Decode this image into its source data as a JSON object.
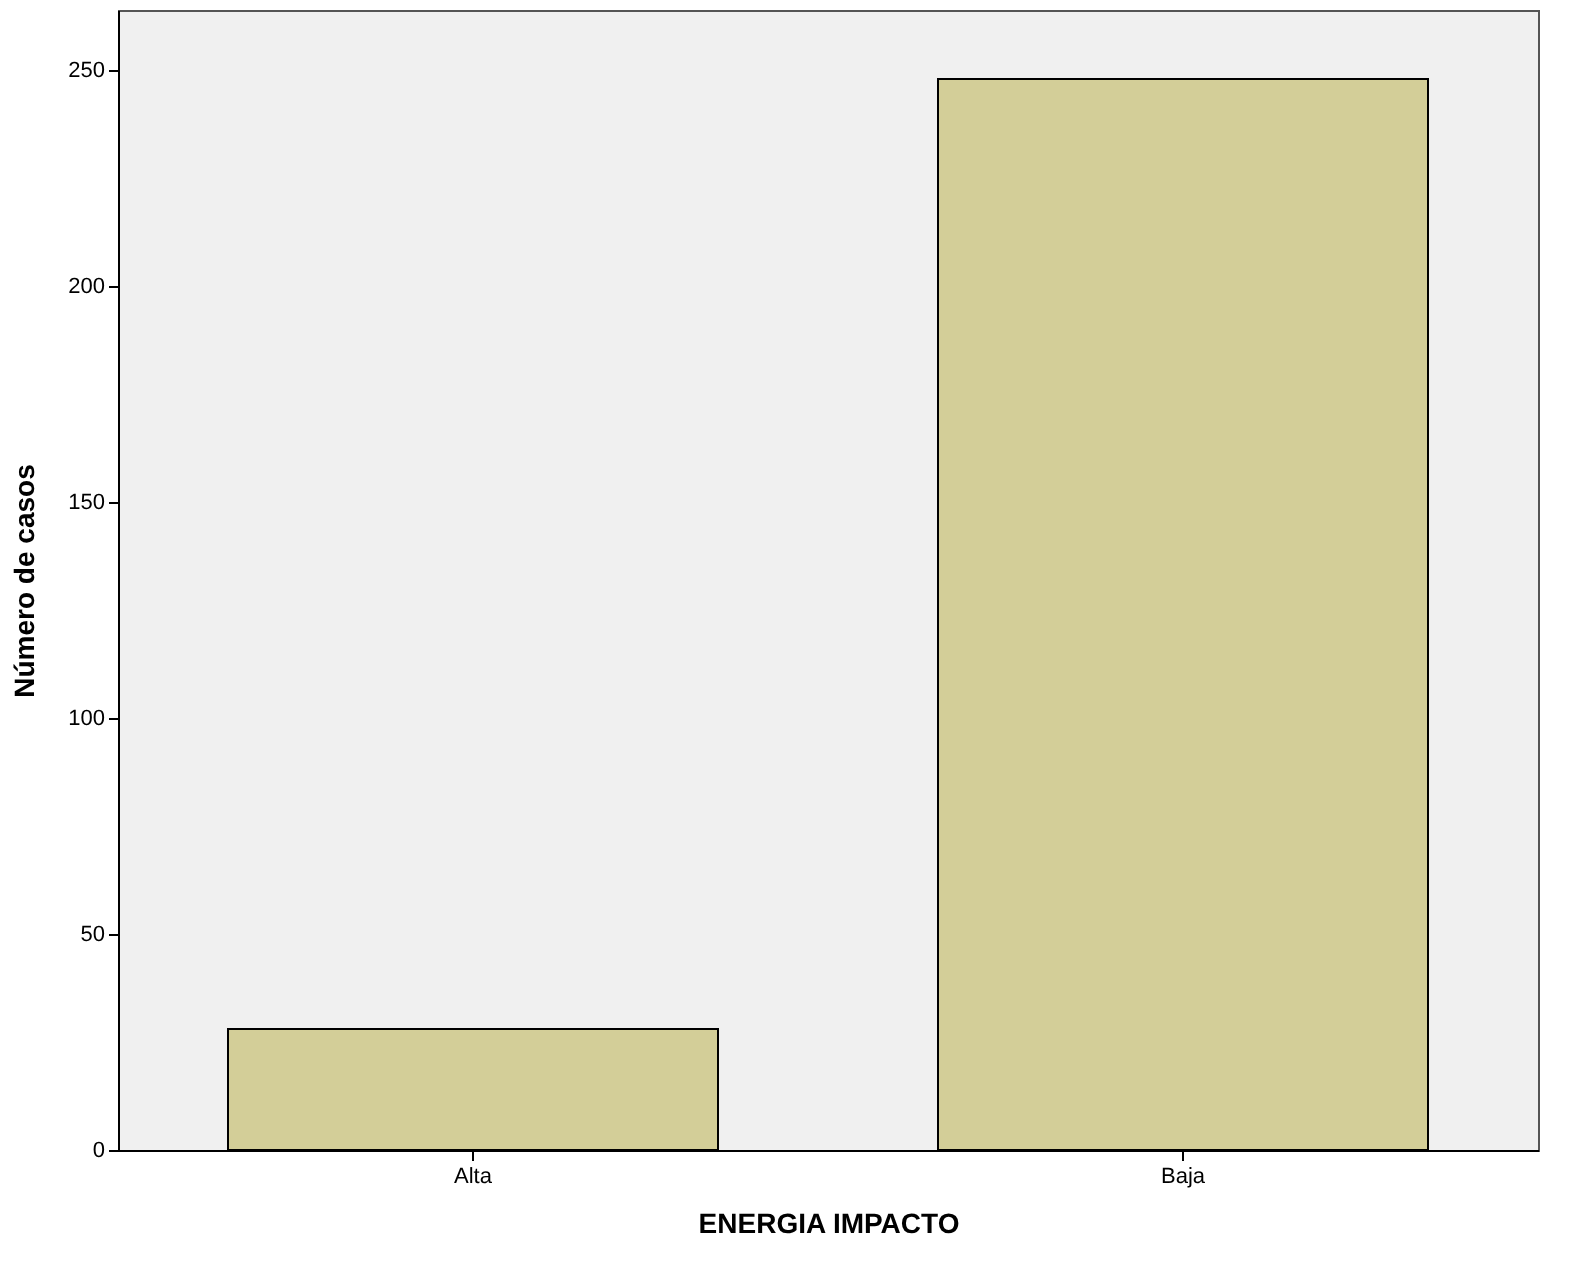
{
  "chart_data": {
    "type": "bar",
    "xlabel": "ENERGIA IMPACTO",
    "ylabel": "Número de casos",
    "categories": [
      "Alta",
      "Baja"
    ],
    "values": [
      28,
      248
    ],
    "color": "#d3ce98",
    "ylim": [
      0,
      264
    ],
    "yticks": [
      0,
      50,
      100,
      150,
      200,
      250
    ],
    "grid": false
  }
}
